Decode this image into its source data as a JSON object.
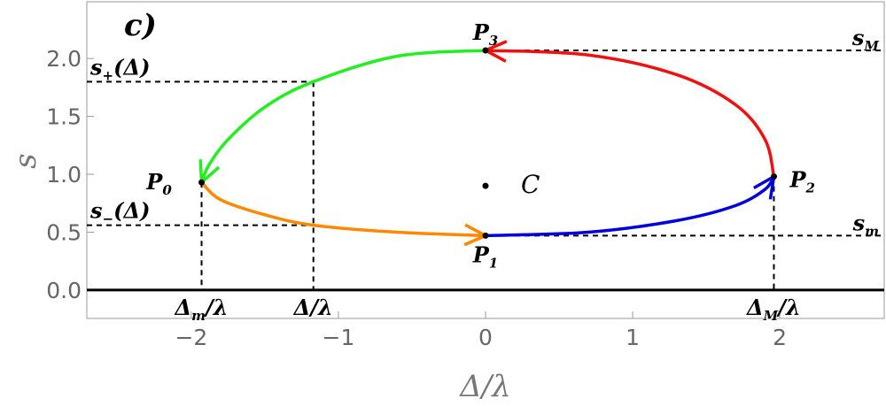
{
  "chart_data": {
    "type": "line",
    "panel_label": "c)",
    "x_label": "Δ/λ",
    "y_label": "s",
    "xlim": [
      -2.71,
      2.71
    ],
    "ylim": [
      -0.245,
      2.49
    ],
    "xticks": [
      {
        "value": -2,
        "label": "−2"
      },
      {
        "value": -1,
        "label": "−1"
      },
      0,
      1,
      2
    ],
    "yticks": [
      {
        "value": 0,
        "label": "0.0"
      },
      {
        "value": 0.5,
        "label": "0.5"
      },
      {
        "value": 1,
        "label": "1.0"
      },
      {
        "value": 1.5,
        "label": "1.5"
      },
      {
        "value": 2,
        "label": "2.0"
      }
    ],
    "series": [
      {
        "color": "#22ee22",
        "x": [
          0,
          -0.6,
          -1.17,
          -1.5,
          -1.75,
          -1.88,
          -1.93
        ],
        "y": [
          2.07,
          2.02,
          1.8,
          1.58,
          1.3,
          1.08,
          0.93
        ]
      },
      {
        "color": "#ff8800",
        "x": [
          -1.93,
          -1.8,
          -1.5,
          -1.17,
          -0.6,
          0
        ],
        "y": [
          0.93,
          0.78,
          0.65,
          0.56,
          0.5,
          0.47
        ]
      },
      {
        "color": "#0000dd",
        "x": [
          0,
          0.7,
          1.3,
          1.7,
          1.9,
          1.96
        ],
        "y": [
          0.47,
          0.5,
          0.6,
          0.73,
          0.87,
          0.98
        ]
      },
      {
        "color": "#ee1111",
        "x": [
          1.96,
          1.9,
          1.7,
          1.3,
          0.7,
          0
        ],
        "y": [
          0.98,
          1.3,
          1.6,
          1.86,
          2.03,
          2.07
        ]
      }
    ],
    "points": [
      {
        "label": "P",
        "sub": "0",
        "x": -1.93,
        "y": 0.93
      },
      {
        "label": "P",
        "sub": "1",
        "x": 0,
        "y": 0.47
      },
      {
        "label": "P",
        "sub": "2",
        "x": 1.96,
        "y": 0.98
      },
      {
        "label": "P",
        "sub": "3",
        "x": 0,
        "y": 2.07
      },
      {
        "label": "C",
        "x": 0,
        "y": 0.9
      }
    ],
    "hlines": [
      {
        "label": "s",
        "sub": "M",
        "y": 2.07,
        "x": 0,
        "side": "right"
      },
      {
        "label": "s",
        "sub": "m",
        "y": 0.47,
        "x": 0,
        "side": "right"
      },
      {
        "label": "s",
        "sub": "+",
        "suffix": "(Δ)",
        "y": 1.8,
        "x": -1.17,
        "side": "left"
      },
      {
        "label": "s",
        "sub": "−",
        "suffix": "(Δ)",
        "y": 0.56,
        "x": -1.17,
        "side": "left"
      }
    ],
    "vlines": [
      {
        "label": "Δ",
        "sub": "m",
        "suffix": "/λ",
        "x": -1.93,
        "y": 0.93
      },
      {
        "label": "Δ/λ",
        "x": -1.17,
        "y": 1.8
      },
      {
        "label": "Δ",
        "sub": "M",
        "suffix": "/λ",
        "x": 1.96,
        "y": 0.98
      }
    ]
  }
}
